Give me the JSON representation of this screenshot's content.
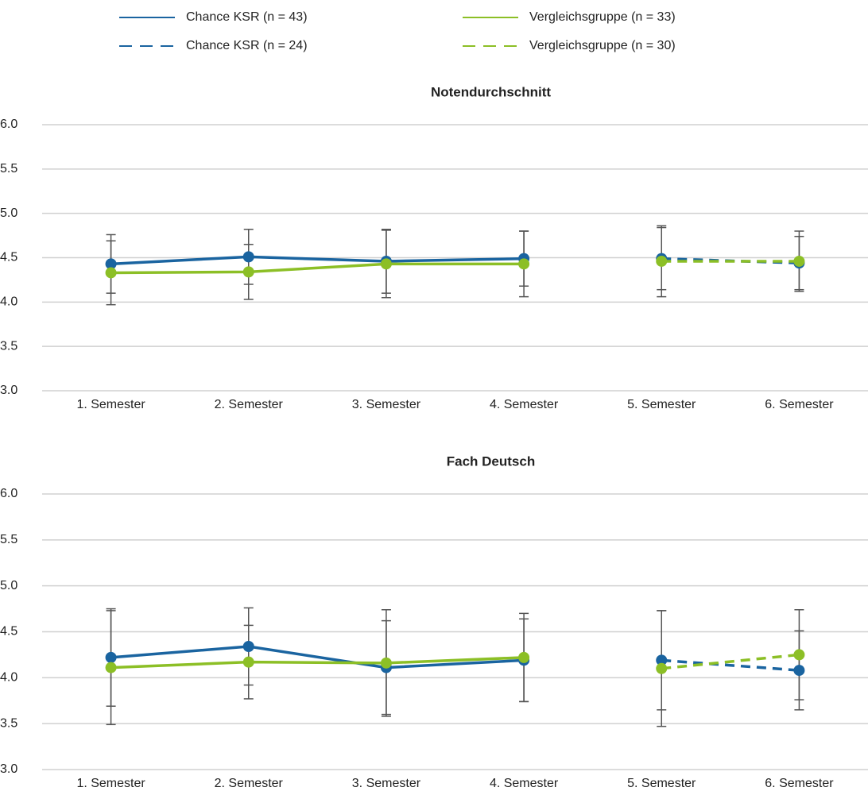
{
  "chart_data": [
    {
      "type": "line",
      "title": "Notendurchschnitt",
      "categories": [
        "1. Semester",
        "2. Semester",
        "3. Semester",
        "4. Semester",
        "5. Semester",
        "6. Semester"
      ],
      "ylim": [
        3,
        6
      ],
      "yticks": [
        {
          "value": 3,
          "label": "3.0"
        },
        {
          "value": 3.5,
          "label": "3.5"
        },
        {
          "value": 4,
          "label": "4.0"
        },
        {
          "value": 4.5,
          "label": "4.5"
        },
        {
          "value": 5,
          "label": "5.0"
        },
        {
          "value": 5.5,
          "label": "5.5"
        },
        {
          "value": 6,
          "label": "6.0"
        }
      ],
      "grid": true,
      "series": [
        {
          "name": "Chance KSR (n = 43)",
          "color": "#1a64a0",
          "dashed": false,
          "values": [
            4.43,
            4.51,
            4.46,
            4.49,
            null,
            null
          ],
          "errors": [
            0.33,
            0.31,
            0.36,
            0.31,
            null,
            null
          ]
        },
        {
          "name": "Chance KSR (n = 24)",
          "color": "#1a64a0",
          "dashed": true,
          "values": [
            null,
            null,
            null,
            null,
            4.49,
            4.44
          ],
          "errors": [
            null,
            null,
            null,
            null,
            0.35,
            0.3
          ]
        },
        {
          "name": "Vergleichsgruppe (n = 33)",
          "color": "#8cbf26",
          "dashed": false,
          "values": [
            4.33,
            4.34,
            4.43,
            4.43,
            null,
            null
          ],
          "errors": [
            0.36,
            0.31,
            0.38,
            0.37,
            null,
            null
          ]
        },
        {
          "name": "Vergleichsgruppe (n = 30)",
          "color": "#8cbf26",
          "dashed": true,
          "values": [
            null,
            null,
            null,
            null,
            4.46,
            4.46
          ],
          "errors": [
            null,
            null,
            null,
            null,
            0.4,
            0.34
          ]
        }
      ]
    },
    {
      "type": "line",
      "title": "Fach Deutsch",
      "categories": [
        "1. Semester",
        "2. Semester",
        "3. Semester",
        "4. Semester",
        "5. Semester",
        "6. Semester"
      ],
      "ylim": [
        3,
        6
      ],
      "yticks": [
        {
          "value": 3,
          "label": "3.0"
        },
        {
          "value": 3.5,
          "label": "3.5"
        },
        {
          "value": 4,
          "label": "4.0"
        },
        {
          "value": 4.5,
          "label": "4.5"
        },
        {
          "value": 5,
          "label": "5.0"
        },
        {
          "value": 5.5,
          "label": "5.5"
        },
        {
          "value": 6,
          "label": "6.0"
        }
      ],
      "grid": true,
      "series": [
        {
          "color": "#1a64a0",
          "dashed": false,
          "values": [
            4.22,
            4.34,
            4.11,
            4.19,
            null,
            null
          ],
          "errors": [
            0.53,
            0.42,
            0.51,
            0.45,
            null,
            null
          ]
        },
        {
          "color": "#1a64a0",
          "dashed": true,
          "values": [
            null,
            null,
            null,
            null,
            4.19,
            4.08
          ],
          "errors": [
            null,
            null,
            null,
            null,
            0.54,
            0.43
          ]
        },
        {
          "color": "#8cbf26",
          "dashed": false,
          "values": [
            4.11,
            4.17,
            4.16,
            4.22,
            null,
            null
          ],
          "errors": [
            0.62,
            0.4,
            0.58,
            0.48,
            null,
            null
          ]
        },
        {
          "color": "#8cbf26",
          "dashed": true,
          "values": [
            null,
            null,
            null,
            null,
            4.1,
            4.25
          ],
          "errors": [
            null,
            null,
            null,
            null,
            0.63,
            0.49
          ]
        }
      ]
    }
  ]
}
